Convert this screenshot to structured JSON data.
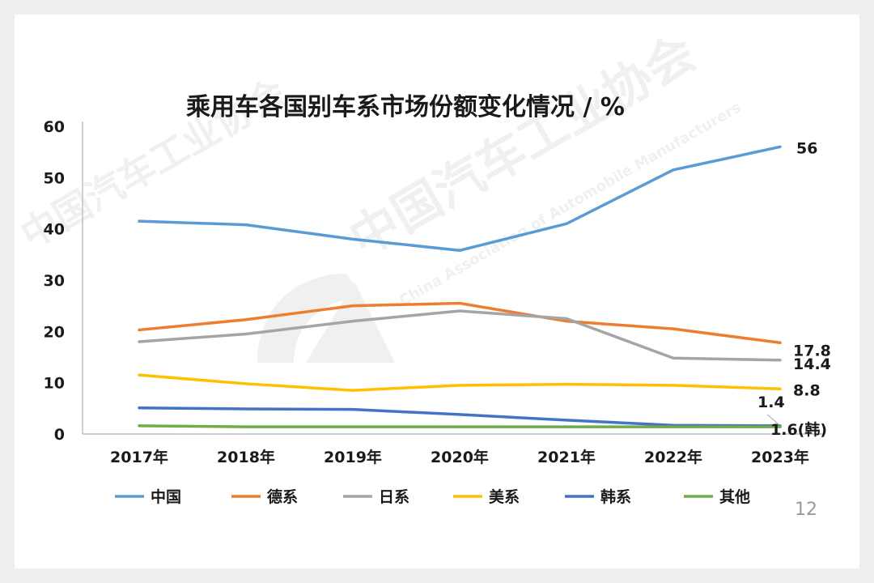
{
  "page_number": "12",
  "watermark": {
    "cn": "中国汽车工业协会",
    "en": "China Association of Automobile Manufacturers"
  },
  "chart_data": {
    "type": "line",
    "title": "乘用车各国别车系市场份额变化情况 / %",
    "categories": [
      "2017年",
      "2018年",
      "2019年",
      "2020年",
      "2021年",
      "2022年",
      "2023年"
    ],
    "ylim": [
      0,
      60
    ],
    "yticks": [
      0,
      10,
      20,
      30,
      40,
      50,
      60
    ],
    "grid": false,
    "legend_position": "bottom",
    "series": [
      {
        "name": "中国",
        "color": "#5b9bd5",
        "values": [
          41.5,
          40.8,
          38,
          35.8,
          41,
          51.5,
          56
        ]
      },
      {
        "name": "德系",
        "color": "#ed7d31",
        "values": [
          20.3,
          22.3,
          25,
          25.5,
          22,
          20.5,
          17.8
        ]
      },
      {
        "name": "日系",
        "color": "#a5a5a5",
        "values": [
          18,
          19.5,
          22,
          24,
          22.5,
          14.8,
          14.4
        ]
      },
      {
        "name": "美系",
        "color": "#ffc000",
        "values": [
          11.5,
          9.8,
          8.5,
          9.5,
          9.7,
          9.5,
          8.8
        ]
      },
      {
        "name": "韩系",
        "color": "#4472c4",
        "values": [
          5.1,
          4.9,
          4.8,
          3.8,
          2.7,
          1.7,
          1.6
        ]
      },
      {
        "name": "其他",
        "color": "#70ad47",
        "values": [
          1.6,
          1.4,
          1.4,
          1.4,
          1.4,
          1.4,
          1.4
        ]
      }
    ],
    "end_labels": [
      {
        "text": "56",
        "value": 56
      },
      {
        "text": "17.8",
        "value": 17.8
      },
      {
        "text": "14.4",
        "value": 14.4
      },
      {
        "text": "8.8",
        "value": 8.8
      },
      {
        "text": "1.4",
        "value": 1.4
      },
      {
        "text": "1.6(韩)",
        "value": 1.6
      }
    ]
  }
}
